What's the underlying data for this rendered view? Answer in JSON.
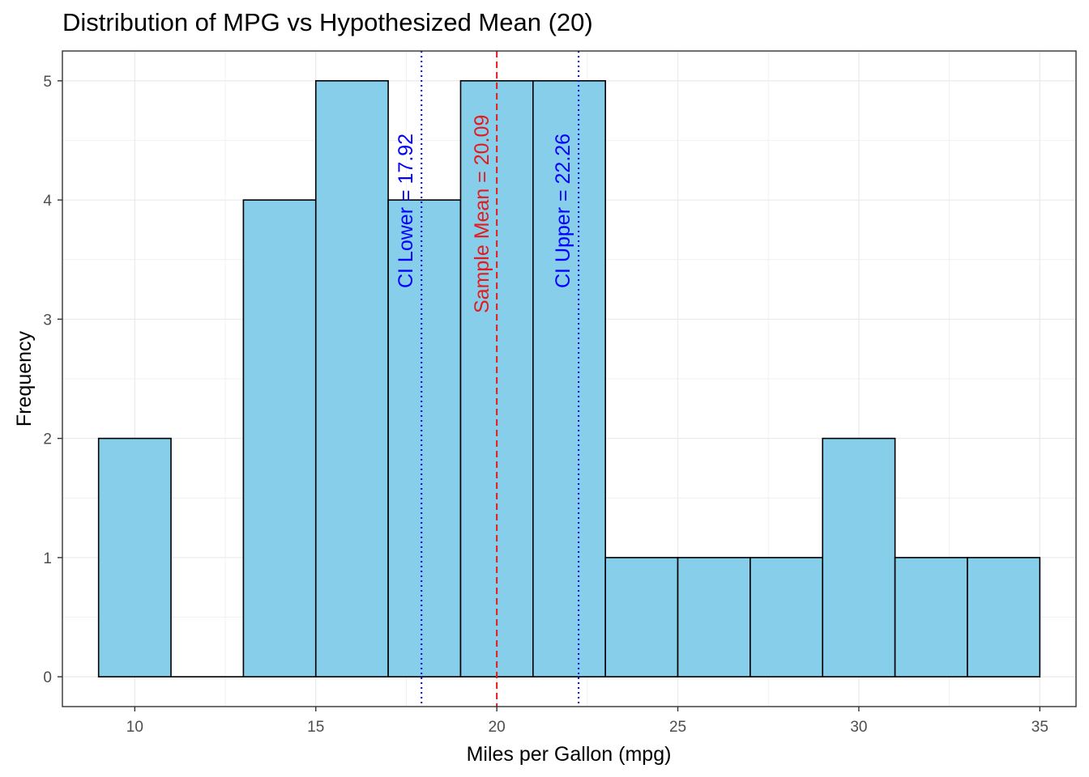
{
  "chart_data": {
    "type": "bar",
    "title": "Distribution of MPG vs Hypothesized Mean (20)",
    "xlabel": "Miles per Gallon (mpg)",
    "ylabel": "Frequency",
    "xlim": [
      8,
      36
    ],
    "ylim": [
      -0.25,
      5.25
    ],
    "x_ticks": [
      10,
      15,
      20,
      25,
      30,
      35
    ],
    "y_ticks": [
      0,
      1,
      2,
      3,
      4,
      5
    ],
    "grid": true,
    "bin_width": 2,
    "bins": [
      {
        "start": 9,
        "end": 11,
        "count": 2
      },
      {
        "start": 11,
        "end": 13,
        "count": 0
      },
      {
        "start": 13,
        "end": 15,
        "count": 4
      },
      {
        "start": 15,
        "end": 17,
        "count": 5
      },
      {
        "start": 17,
        "end": 19,
        "count": 4
      },
      {
        "start": 19,
        "end": 21,
        "count": 5
      },
      {
        "start": 21,
        "end": 23,
        "count": 5
      },
      {
        "start": 23,
        "end": 25,
        "count": 1
      },
      {
        "start": 25,
        "end": 27,
        "count": 1
      },
      {
        "start": 27,
        "end": 29,
        "count": 1
      },
      {
        "start": 29,
        "end": 31,
        "count": 2
      },
      {
        "start": 31,
        "end": 33,
        "count": 1
      },
      {
        "start": 33,
        "end": 35,
        "count": 1
      }
    ],
    "reference_lines": [
      {
        "x": 17.92,
        "label": "CI Lower = 17.92",
        "color": "#0000FF",
        "style": "dotted"
      },
      {
        "x": 20,
        "label": "",
        "color": "#E41A1C",
        "style": "dashed"
      },
      {
        "x": 22.26,
        "label": "CI Upper = 22.26",
        "color": "#0000FF",
        "style": "dotted"
      }
    ],
    "annotations": [
      {
        "x": 20.09,
        "text": "Sample Mean = 20.09",
        "color": "#E41A1C"
      }
    ],
    "colors": {
      "fill": "#87CEEB",
      "border": "#000000",
      "grid": "#EBEBEB",
      "panel_border": "#333333"
    }
  }
}
